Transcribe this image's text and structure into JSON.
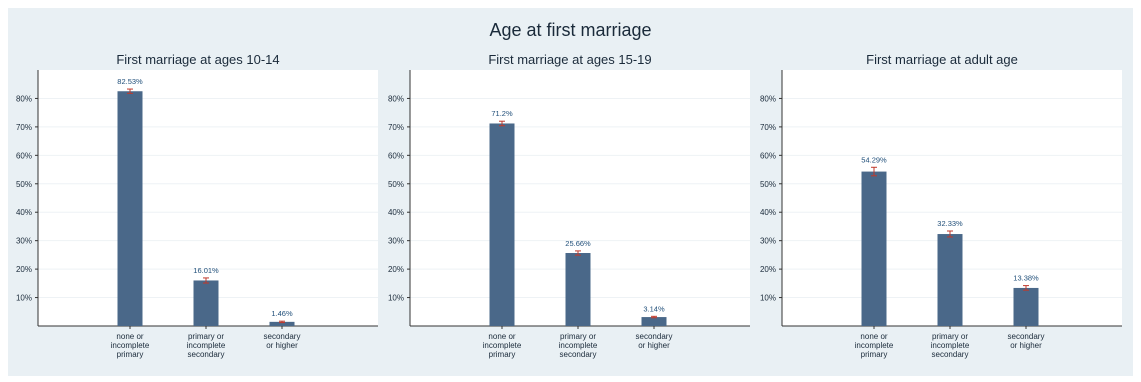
{
  "main_title": "Age at first marriage",
  "colors": {
    "bar": "#4a6889",
    "error_bar": "#c0392b",
    "panel_bg": "#ffffff",
    "outer_bg": "#e9f0f4",
    "label": "#1f4e79"
  },
  "chart_data": [
    {
      "type": "bar",
      "title": "First marriage at ages 10-14",
      "categories": [
        [
          "none or",
          "incomplete",
          "primary"
        ],
        [
          "primary or",
          "incomplete",
          "secondary"
        ],
        [
          "secondary",
          "or higher"
        ]
      ],
      "values": [
        82.53,
        16.01,
        1.46
      ],
      "value_labels": [
        "82.53%",
        "16.01%",
        "1.46%"
      ],
      "error_bars": [
        [
          81.8,
          83.3
        ],
        [
          15.1,
          16.9
        ],
        [
          1.2,
          1.7
        ]
      ],
      "yticks": [
        "10%",
        "20%",
        "30%",
        "40%",
        "50%",
        "60%",
        "70%",
        "80%"
      ],
      "ylim": [
        0,
        90
      ],
      "grid": true
    },
    {
      "type": "bar",
      "title": "First marriage at ages 15-19",
      "categories": [
        [
          "none or",
          "incomplete",
          "primary"
        ],
        [
          "primary or",
          "incomplete",
          "secondary"
        ],
        [
          "secondary",
          "or higher"
        ]
      ],
      "values": [
        71.2,
        25.66,
        3.14
      ],
      "value_labels": [
        "71.2%",
        "25.66%",
        "3.14%"
      ],
      "error_bars": [
        [
          70.4,
          72.0
        ],
        [
          24.9,
          26.4
        ],
        [
          2.9,
          3.4
        ]
      ],
      "yticks": [
        "10%",
        "20%",
        "30%",
        "40%",
        "50%",
        "60%",
        "70%",
        "80%"
      ],
      "ylim": [
        0,
        90
      ],
      "grid": true
    },
    {
      "type": "bar",
      "title": "First marriage at adult age",
      "categories": [
        [
          "none or",
          "incomplete",
          "primary"
        ],
        [
          "primary or",
          "incomplete",
          "secondary"
        ],
        [
          "secondary",
          "or higher"
        ]
      ],
      "values": [
        54.29,
        32.33,
        13.38
      ],
      "value_labels": [
        "54.29%",
        "32.33%",
        "13.38%"
      ],
      "error_bars": [
        [
          52.8,
          55.8
        ],
        [
          31.3,
          33.4
        ],
        [
          12.6,
          14.2
        ]
      ],
      "yticks": [
        "10%",
        "20%",
        "30%",
        "40%",
        "50%",
        "60%",
        "70%",
        "80%"
      ],
      "ylim": [
        0,
        90
      ],
      "grid": true
    }
  ]
}
